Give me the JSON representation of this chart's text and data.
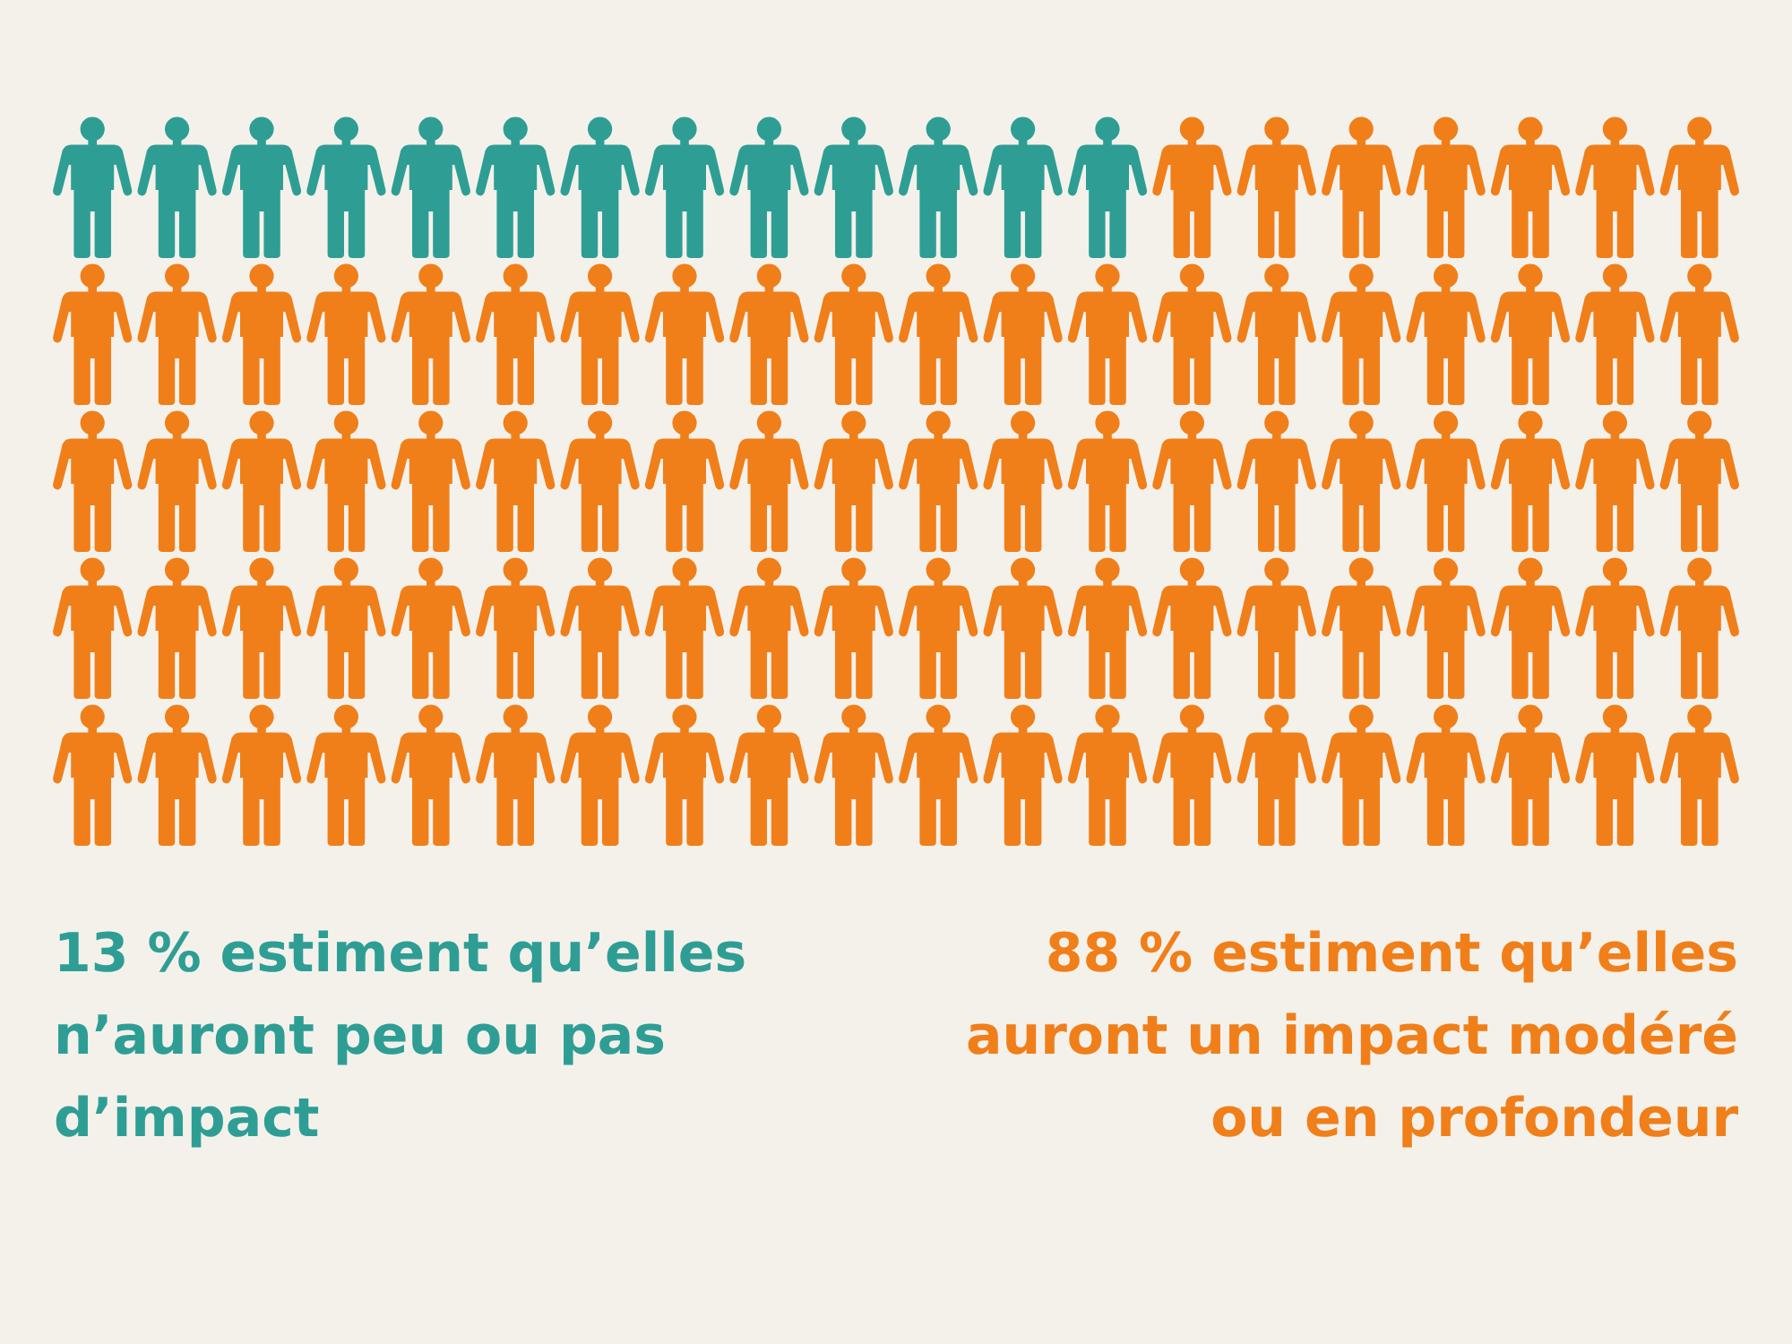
{
  "chart_data": {
    "type": "other",
    "categories": [
      "estiment qu’elles n’auront peu ou pas d’impact",
      "estiment qu’elles auront un impact modéré ou en profondeur"
    ],
    "values": [
      13,
      88
    ],
    "value_labels": [
      "13 %",
      "88 %"
    ],
    "colors": [
      "#2e9e95",
      "#f07f1a"
    ]
  }
}
